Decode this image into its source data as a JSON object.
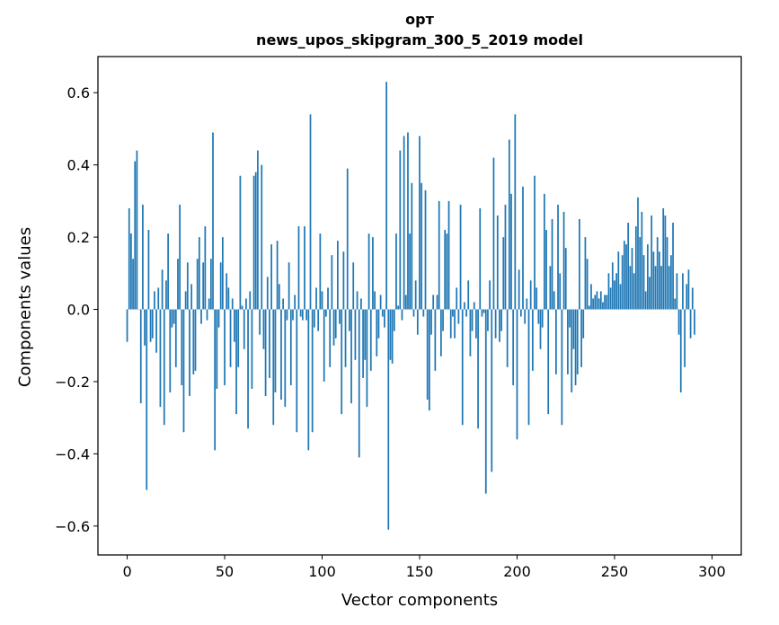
{
  "chart_data": {
    "type": "bar",
    "title": "орт",
    "subtitle": "news_upos_skipgram_300_5_2019 model",
    "xlabel": "Vector components",
    "ylabel": "Components values",
    "xlim": [
      -15,
      315
    ],
    "ylim": [
      -0.68,
      0.7
    ],
    "xticks": [
      0,
      50,
      100,
      150,
      200,
      250,
      300
    ],
    "yticks": [
      -0.6,
      -0.4,
      -0.2,
      0.0,
      0.2,
      0.4,
      0.6
    ],
    "ytick_labels": [
      "−0.6",
      "−0.4",
      "−0.2",
      "0.0",
      "0.2",
      "0.4",
      "0.6"
    ],
    "grid": false,
    "bar_color": "#1f77b4",
    "x_start": 0,
    "values": [
      -0.09,
      0.28,
      0.21,
      0.14,
      0.41,
      0.44,
      0.0,
      -0.26,
      0.29,
      -0.1,
      -0.5,
      0.22,
      -0.09,
      -0.08,
      0.05,
      -0.12,
      0.06,
      -0.27,
      0.11,
      -0.32,
      0.08,
      0.21,
      -0.23,
      -0.05,
      -0.04,
      -0.16,
      0.14,
      0.29,
      -0.21,
      -0.34,
      0.05,
      0.13,
      -0.24,
      0.07,
      -0.18,
      -0.17,
      0.14,
      0.2,
      -0.04,
      0.13,
      0.23,
      -0.03,
      0.03,
      0.14,
      0.49,
      -0.39,
      -0.22,
      -0.05,
      0.13,
      0.2,
      -0.21,
      0.1,
      0.06,
      -0.16,
      0.03,
      -0.09,
      -0.29,
      -0.16,
      0.37,
      0.01,
      -0.11,
      0.03,
      -0.33,
      0.05,
      -0.22,
      0.37,
      0.38,
      0.44,
      -0.07,
      0.4,
      -0.11,
      -0.24,
      0.09,
      -0.19,
      0.18,
      -0.32,
      -0.23,
      0.19,
      0.07,
      -0.25,
      0.03,
      -0.27,
      -0.03,
      0.13,
      -0.21,
      -0.03,
      0.04,
      -0.34,
      0.23,
      -0.02,
      -0.03,
      0.23,
      -0.03,
      -0.39,
      0.54,
      -0.34,
      -0.05,
      0.06,
      -0.06,
      0.21,
      0.05,
      -0.2,
      -0.02,
      0.06,
      -0.16,
      0.15,
      -0.1,
      -0.08,
      0.19,
      -0.04,
      -0.29,
      0.16,
      -0.16,
      0.39,
      -0.06,
      -0.26,
      0.13,
      -0.14,
      0.05,
      -0.41,
      0.03,
      -0.19,
      -0.14,
      -0.27,
      0.21,
      -0.17,
      0.2,
      0.05,
      -0.13,
      -0.08,
      0.04,
      -0.02,
      -0.05,
      0.63,
      -0.61,
      -0.14,
      -0.15,
      -0.06,
      0.21,
      0.01,
      0.44,
      -0.03,
      0.48,
      0.04,
      0.49,
      0.21,
      0.35,
      -0.02,
      0.08,
      -0.07,
      0.48,
      0.35,
      -0.02,
      0.33,
      -0.25,
      -0.28,
      -0.07,
      0.04,
      -0.17,
      0.04,
      0.3,
      -0.13,
      -0.06,
      0.22,
      0.21,
      0.3,
      -0.08,
      -0.02,
      -0.08,
      0.06,
      -0.04,
      0.29,
      -0.32,
      0.02,
      -0.02,
      0.08,
      -0.13,
      -0.06,
      0.02,
      -0.08,
      -0.33,
      0.28,
      -0.02,
      -0.01,
      -0.51,
      -0.06,
      0.08,
      -0.45,
      0.42,
      -0.08,
      0.26,
      -0.09,
      -0.06,
      0.2,
      0.29,
      -0.16,
      0.47,
      0.32,
      -0.21,
      0.54,
      -0.36,
      0.11,
      -0.02,
      0.34,
      -0.04,
      0.03,
      -0.32,
      0.08,
      -0.17,
      0.37,
      0.06,
      -0.04,
      -0.11,
      -0.05,
      0.32,
      0.22,
      -0.29,
      0.12,
      0.25,
      0.05,
      -0.18,
      0.29,
      0.1,
      -0.32,
      0.27,
      0.17,
      -0.18,
      -0.05,
      -0.23,
      -0.11,
      -0.21,
      -0.18,
      0.25,
      -0.16,
      -0.08,
      0.2,
      0.14,
      0.01,
      0.07,
      0.03,
      0.04,
      0.05,
      0.03,
      0.05,
      0.02,
      0.04,
      0.04,
      0.1,
      0.06,
      0.13,
      0.08,
      0.1,
      0.16,
      0.07,
      0.15,
      0.19,
      0.18,
      0.24,
      0.12,
      0.17,
      0.1,
      0.23,
      0.31,
      0.2,
      0.27,
      0.15,
      0.05,
      0.18,
      0.09,
      0.26,
      0.16,
      0.12,
      0.2,
      0.16,
      0.12,
      0.28,
      0.26,
      0.2,
      0.12,
      0.15,
      0.24,
      0.03,
      0.1,
      -0.07,
      -0.23,
      0.1,
      -0.16,
      0.07,
      0.11,
      -0.08,
      0.06,
      -0.07
    ]
  }
}
